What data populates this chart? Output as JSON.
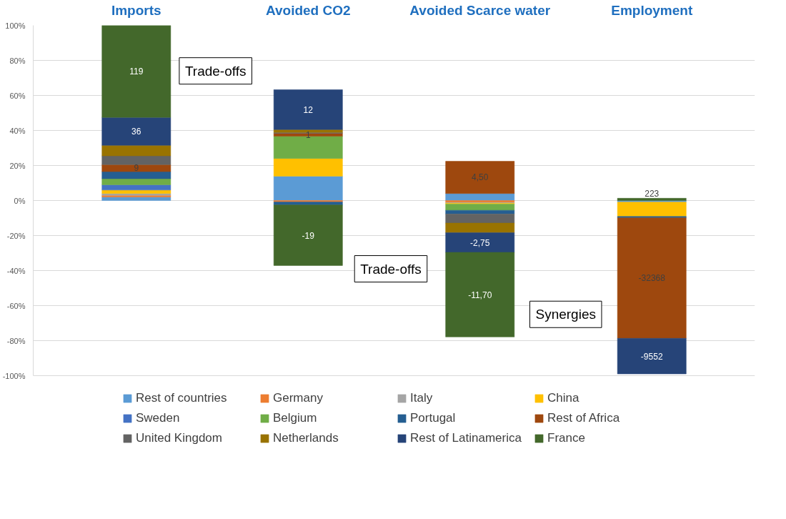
{
  "chart_data": {
    "type": "bar",
    "stacked": true,
    "categories": [
      "Imports",
      "Avoided CO2",
      "Avoided Scarce water",
      "Employment"
    ],
    "ylim": [
      -100,
      100
    ],
    "yticks": [
      {
        "value": -100,
        "label": "-100%"
      },
      {
        "value": -80,
        "label": "-80%"
      },
      {
        "value": -60,
        "label": "-60%"
      },
      {
        "value": -40,
        "label": "-40%"
      },
      {
        "value": -20,
        "label": "-20%"
      },
      {
        "value": 0,
        "label": "0%"
      },
      {
        "value": 20,
        "label": "20%"
      },
      {
        "value": 40,
        "label": "40%"
      },
      {
        "value": 60,
        "label": "60%"
      },
      {
        "value": 80,
        "label": "80%"
      },
      {
        "value": 100,
        "label": "100%"
      }
    ],
    "grid": "y",
    "legend": "bottom",
    "annotations": [
      "Trade-offs",
      "Trade-offs",
      "Synergies",
      "119",
      "36",
      "9",
      "12",
      "1",
      "-19",
      "4,50",
      "-2,75",
      "-11,70",
      "223",
      "-32368",
      "-9552"
    ],
    "series": [
      {
        "name": "Rest of countries",
        "color": "#5b9bd5",
        "values": [
          2,
          13.9,
          4.0,
          -0.9
        ]
      },
      {
        "name": "Germany",
        "color": "#ed7d31",
        "values": [
          1,
          -0.8,
          -1.1,
          null
        ]
      },
      {
        "name": "Italy",
        "color": "#a5a5a5",
        "values": [
          1,
          null,
          -0.4,
          null
        ]
      },
      {
        "name": "China",
        "color": "#ffc000",
        "values": [
          2,
          10.1,
          -0.5,
          -8.2
        ]
      },
      {
        "name": "Sweden",
        "color": "#4472c4",
        "values": [
          3,
          null,
          null,
          null
        ]
      },
      {
        "name": "Belgium",
        "color": "#70ad47",
        "values": [
          3.5,
          12.7,
          -3.6,
          null
        ]
      },
      {
        "name": "Portugal",
        "color": "#255e91",
        "values": [
          4,
          -1.7,
          -2.1,
          -0.8
        ]
      },
      {
        "name": "Rest of Africa",
        "color": "#9e480e",
        "values": [
          4,
          1.7,
          18.4,
          -68.8
        ]
      },
      {
        "name": "United Kingdom",
        "color": "#636363",
        "values": [
          5,
          0.5,
          -5.2,
          null
        ]
      },
      {
        "name": "Netherlands",
        "color": "#997300",
        "values": [
          6,
          1.6,
          -5.5,
          null
        ]
      },
      {
        "name": "Rest of Latinamerica",
        "color": "#264478",
        "values": [
          16,
          22.8,
          -11.2,
          -20.3
        ]
      },
      {
        "name": "France",
        "color": "#43682b",
        "values": [
          52.5,
          -34.6,
          -48.3,
          1.3
        ]
      }
    ]
  }
}
